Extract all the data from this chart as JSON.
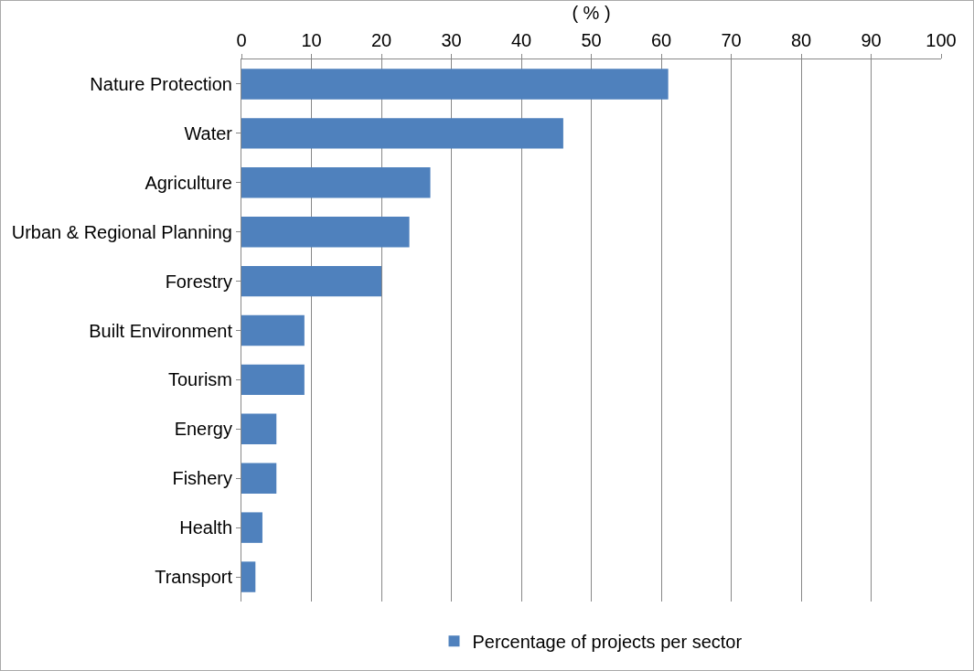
{
  "chart_data": {
    "type": "bar",
    "orientation": "horizontal",
    "xlabel": "( % )",
    "categories": [
      "Nature Protection",
      "Water",
      "Agriculture",
      "Urban & Regional Planning",
      "Forestry",
      "Built Environment",
      "Tourism",
      "Energy",
      "Fishery",
      "Health",
      "Transport"
    ],
    "series": [
      {
        "name": "Percentage of projects per sector",
        "color": "#4f81bd",
        "values": [
          61,
          46,
          27,
          24,
          20,
          9,
          9,
          5,
          5,
          3,
          2
        ]
      }
    ],
    "xlim": [
      0,
      100
    ],
    "xticks": [
      0,
      10,
      20,
      30,
      40,
      50,
      60,
      70,
      80,
      90,
      100
    ],
    "grid": "x",
    "legend": "bottom"
  }
}
